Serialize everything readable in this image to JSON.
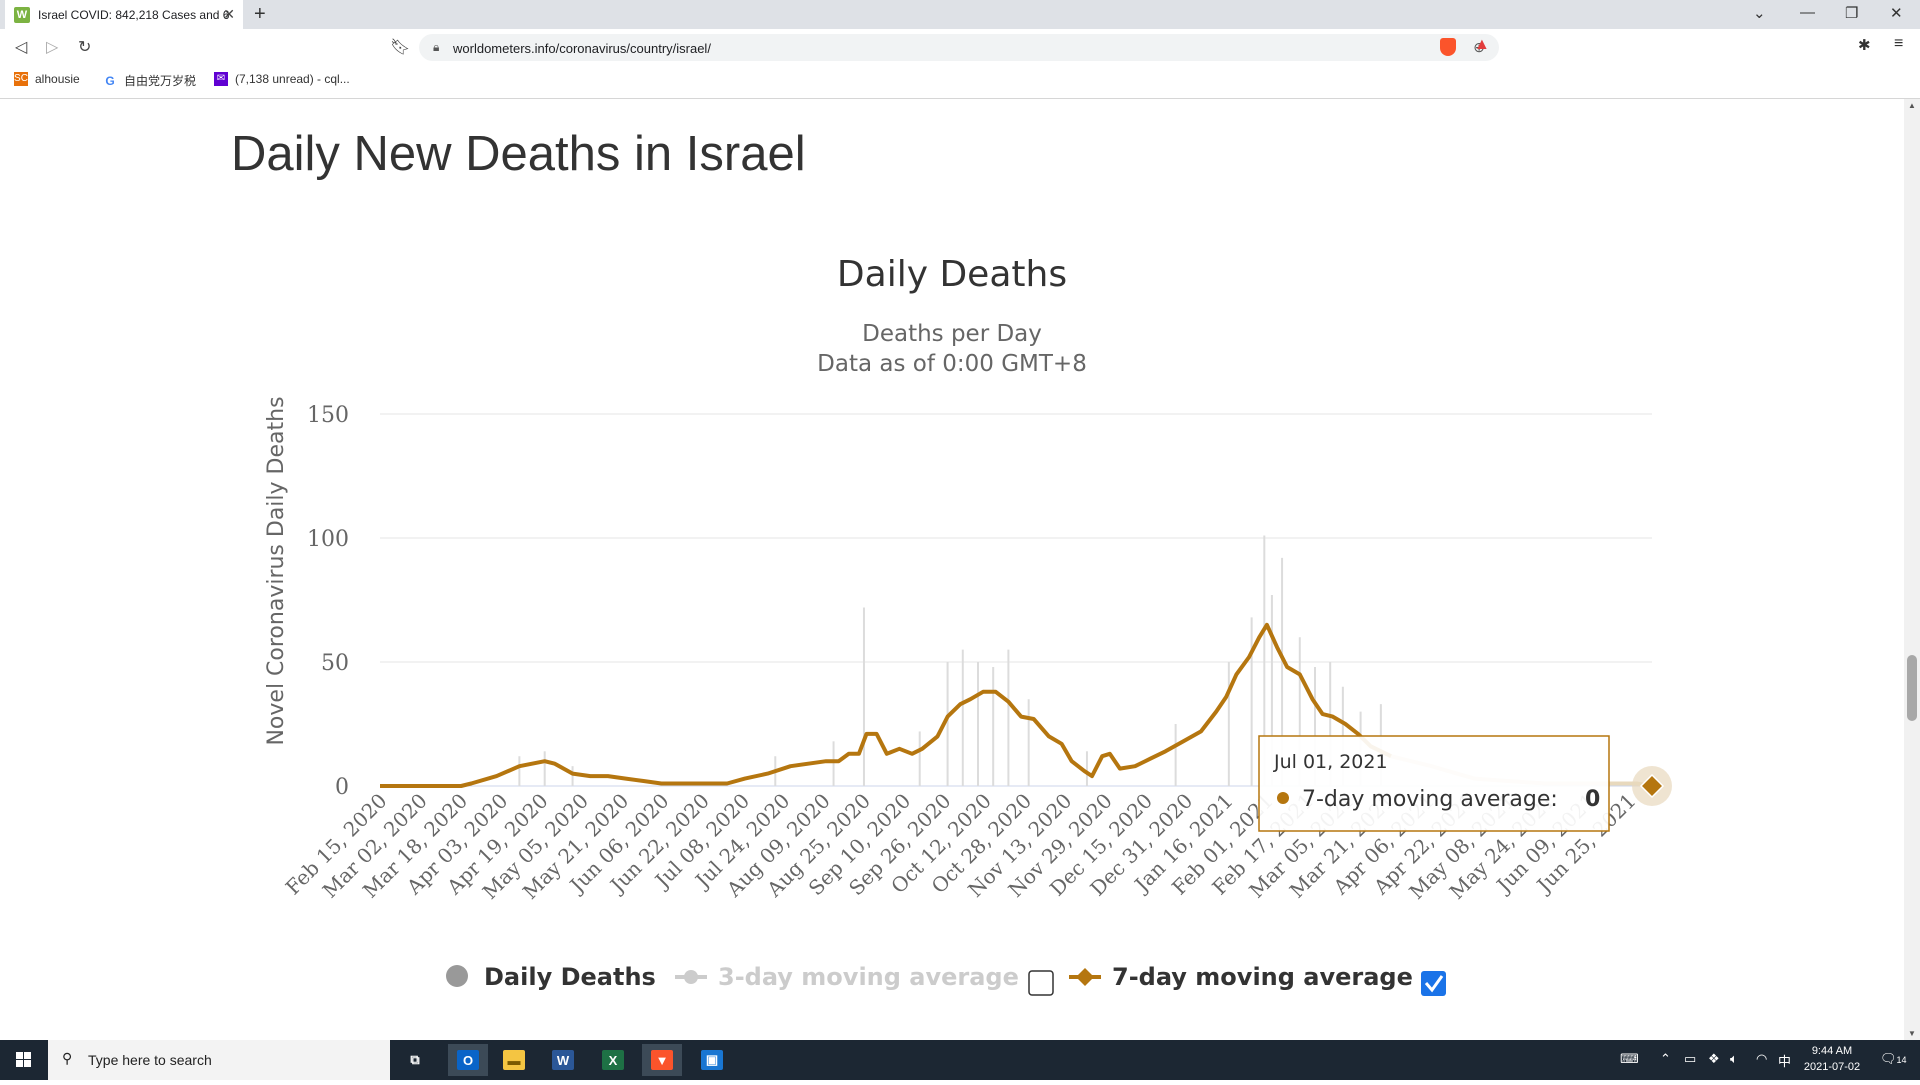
{
  "browser": {
    "tab_title": "Israel COVID: 842,218 Cases and 6",
    "url": "worldometers.info/coronavirus/country/israel/",
    "bookmarks": [
      {
        "label": "alhousie",
        "icon": "sc-icon"
      },
      {
        "label": "自由党万岁税",
        "icon": "google-icon"
      },
      {
        "label": "(7,138 unread) - cql...",
        "icon": "mail-icon"
      }
    ]
  },
  "page": {
    "heading": "Daily New Deaths in Israel"
  },
  "chart_data": {
    "type": "line",
    "title": "Daily Deaths",
    "subtitle_line1": "Deaths per Day",
    "subtitle_line2": "Data as of 0:00 GMT+8",
    "ylabel": "Novel Coronavirus Daily Deaths",
    "ylim": [
      0,
      150
    ],
    "yticks": [
      "150",
      "100",
      "50",
      "0"
    ],
    "x_start": "2020-02-15",
    "x_end": "2021-07-01",
    "xtick_labels": [
      "Feb 15, 2020",
      "Mar 02, 2020",
      "Mar 18, 2020",
      "Apr 03, 2020",
      "Apr 19, 2020",
      "May 05, 2020",
      "May 21, 2020",
      "Jun 06, 2020",
      "Jun 22, 2020",
      "Jul 08, 2020",
      "Jul 24, 2020",
      "Aug 09, 2020",
      "Aug 25, 2020",
      "Sep 10, 2020",
      "Sep 26, 2020",
      "Oct 12, 2020",
      "Oct 28, 2020",
      "Nov 13, 2020",
      "Nov 29, 2020",
      "Dec 15, 2020",
      "Dec 31, 2020",
      "Jan 16, 2021",
      "Feb 01, 2021",
      "Feb 17, 2021",
      "Mar 05, 2021",
      "Mar 21, 2021",
      "Apr 06, 2021",
      "Apr 22, 2021",
      "May 08, 2021",
      "May 24, 2021",
      "Jun 09, 2021",
      "Jun 25, 2021"
    ],
    "series": [
      {
        "name": "7-day moving average",
        "color": "#b5760f",
        "points": [
          [
            "2020-02-15",
            0
          ],
          [
            "2020-03-18",
            0
          ],
          [
            "2020-03-22",
            1
          ],
          [
            "2020-04-01",
            4
          ],
          [
            "2020-04-10",
            8
          ],
          [
            "2020-04-20",
            10
          ],
          [
            "2020-04-24",
            9
          ],
          [
            "2020-05-01",
            5
          ],
          [
            "2020-05-08",
            4
          ],
          [
            "2020-05-15",
            4
          ],
          [
            "2020-05-22",
            3
          ],
          [
            "2020-05-29",
            2
          ],
          [
            "2020-06-05",
            1
          ],
          [
            "2020-06-20",
            1
          ],
          [
            "2020-07-01",
            1
          ],
          [
            "2020-07-08",
            3
          ],
          [
            "2020-07-17",
            5
          ],
          [
            "2020-07-26",
            8
          ],
          [
            "2020-08-02",
            9
          ],
          [
            "2020-08-09",
            10
          ],
          [
            "2020-08-14",
            10
          ],
          [
            "2020-08-18",
            13
          ],
          [
            "2020-08-22",
            13
          ],
          [
            "2020-08-25",
            21
          ],
          [
            "2020-08-29",
            21
          ],
          [
            "2020-09-02",
            13
          ],
          [
            "2020-09-07",
            15
          ],
          [
            "2020-09-12",
            13
          ],
          [
            "2020-09-16",
            15
          ],
          [
            "2020-09-22",
            20
          ],
          [
            "2020-09-26",
            28
          ],
          [
            "2020-10-01",
            33
          ],
          [
            "2020-10-05",
            35
          ],
          [
            "2020-10-10",
            38
          ],
          [
            "2020-10-15",
            38
          ],
          [
            "2020-10-20",
            34
          ],
          [
            "2020-10-25",
            28
          ],
          [
            "2020-10-30",
            27
          ],
          [
            "2020-11-05",
            20
          ],
          [
            "2020-11-10",
            17
          ],
          [
            "2020-11-14",
            10
          ],
          [
            "2020-11-19",
            6
          ],
          [
            "2020-11-22",
            4
          ],
          [
            "2020-11-26",
            12
          ],
          [
            "2020-11-29",
            13
          ],
          [
            "2020-12-03",
            7
          ],
          [
            "2020-12-09",
            8
          ],
          [
            "2020-12-15",
            11
          ],
          [
            "2020-12-21",
            14
          ],
          [
            "2020-12-28",
            18
          ],
          [
            "2021-01-04",
            22
          ],
          [
            "2021-01-10",
            30
          ],
          [
            "2021-01-14",
            36
          ],
          [
            "2021-01-18",
            45
          ],
          [
            "2021-01-23",
            52
          ],
          [
            "2021-01-27",
            60
          ],
          [
            "2021-01-30",
            65
          ],
          [
            "2021-02-03",
            56
          ],
          [
            "2021-02-07",
            48
          ],
          [
            "2021-02-12",
            45
          ],
          [
            "2021-02-17",
            35
          ],
          [
            "2021-02-21",
            29
          ],
          [
            "2021-02-25",
            28
          ],
          [
            "2021-03-02",
            25
          ],
          [
            "2021-03-07",
            21
          ],
          [
            "2021-03-12",
            16
          ],
          [
            "2021-03-20",
            12
          ],
          [
            "2021-03-28",
            10
          ],
          [
            "2021-04-05",
            8
          ],
          [
            "2021-04-15",
            5
          ],
          [
            "2021-04-22",
            3
          ],
          [
            "2021-05-05",
            2
          ],
          [
            "2021-05-20",
            1
          ],
          [
            "2021-06-10",
            1
          ],
          [
            "2021-06-25",
            1
          ],
          [
            "2021-07-01",
            0
          ]
        ]
      },
      {
        "name": "Daily Deaths",
        "color": "#dcdcdc",
        "points": [
          [
            "2020-04-10",
            12
          ],
          [
            "2020-04-20",
            14
          ],
          [
            "2020-05-01",
            8
          ],
          [
            "2020-07-20",
            12
          ],
          [
            "2020-08-12",
            18
          ],
          [
            "2020-08-24",
            72
          ],
          [
            "2020-09-15",
            22
          ],
          [
            "2020-09-26",
            50
          ],
          [
            "2020-10-02",
            55
          ],
          [
            "2020-10-08",
            50
          ],
          [
            "2020-10-14",
            48
          ],
          [
            "2020-10-20",
            55
          ],
          [
            "2020-10-28",
            35
          ],
          [
            "2020-11-20",
            14
          ],
          [
            "2020-12-25",
            25
          ],
          [
            "2021-01-15",
            50
          ],
          [
            "2021-01-24",
            68
          ],
          [
            "2021-02-01",
            77
          ],
          [
            "2021-01-29",
            101
          ],
          [
            "2021-02-05",
            92
          ],
          [
            "2021-02-12",
            60
          ],
          [
            "2021-02-18",
            48
          ],
          [
            "2021-02-24",
            50
          ],
          [
            "2021-03-01",
            40
          ],
          [
            "2021-03-08",
            30
          ],
          [
            "2021-03-16",
            33
          ]
        ]
      }
    ],
    "legend": [
      {
        "label": "Daily Deaths",
        "state": "shown",
        "color": "#999999"
      },
      {
        "label": "3-day moving average",
        "state": "hidden",
        "color": "#cccccc"
      },
      {
        "label": "7-day moving average",
        "state": "shown",
        "color": "#b5760f"
      }
    ],
    "tooltip": {
      "date": "Jul 01, 2021",
      "series": "7-day moving average:",
      "value": "0"
    }
  },
  "taskbar": {
    "search_placeholder": "Type here to search",
    "time": "9:44 AM",
    "date": "2021-07-02",
    "notification_count": "14"
  }
}
